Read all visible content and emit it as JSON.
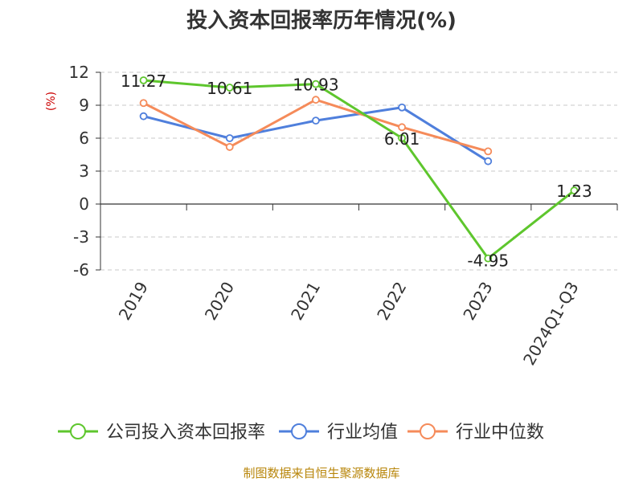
{
  "chart_data": {
    "type": "line",
    "title": "投入资本回报率历年情况(%)",
    "ylabel": "(%)",
    "categories": [
      "2019",
      "2020",
      "2021",
      "2022",
      "2023",
      "2024Q1-Q3"
    ],
    "yticks": [
      12,
      9,
      6,
      3,
      0,
      -3,
      -6
    ],
    "ylim": [
      -6,
      12
    ],
    "grid": true,
    "legend_position": "bottom",
    "series": [
      {
        "name": "公司投入资本回报率",
        "color": "#5ec62d",
        "values": [
          11.27,
          10.61,
          10.93,
          6.01,
          -4.95,
          1.23
        ],
        "labels": [
          "11.27",
          "10.61",
          "10.93",
          "6.01",
          "-4.95",
          "1.23"
        ]
      },
      {
        "name": "行业均值",
        "color": "#4f7fdc",
        "values": [
          8.0,
          6.0,
          7.6,
          8.8,
          3.9,
          null
        ]
      },
      {
        "name": "行业中位数",
        "color": "#f58b5a",
        "values": [
          9.2,
          5.2,
          9.5,
          7.0,
          4.8,
          null
        ]
      }
    ],
    "source": "制图数据来自恒生聚源数据库"
  }
}
